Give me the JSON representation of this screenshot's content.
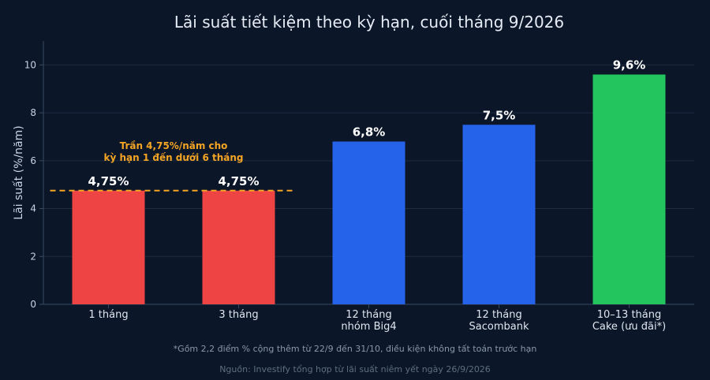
{
  "chart_data": {
    "type": "bar",
    "title": "Lãi suất tiết kiệm theo kỳ hạn, cuối tháng 9/2026",
    "ylabel": "Lãi suất (%/năm)",
    "xlabel": "",
    "ylim": [
      0,
      11
    ],
    "yticks": [
      0,
      2,
      4,
      6,
      8,
      10
    ],
    "grid": true,
    "categories": [
      [
        "1 tháng"
      ],
      [
        "3 tháng"
      ],
      [
        "12 tháng",
        "nhóm Big4"
      ],
      [
        "12 tháng",
        "Sacombank"
      ],
      [
        "10–13 tháng",
        "Cake (ưu đãi*)"
      ]
    ],
    "values": [
      4.75,
      4.75,
      6.8,
      7.5,
      9.6
    ],
    "value_labels": [
      "4,75%",
      "4,75%",
      "6,8%",
      "7,5%",
      "9,6%"
    ],
    "bar_colors": [
      "#ef4444",
      "#ef4444",
      "#2563eb",
      "#2563eb",
      "#22c55e"
    ],
    "reference_line": {
      "value": 4.75,
      "color": "#f5a524",
      "style": "dashed",
      "label_lines": [
        "Trần 4,75%/năm cho",
        "kỳ hạn 1 đến dưới 6 tháng"
      ]
    }
  },
  "footnote": "*Gồm 2,2 điểm % cộng thêm từ 22/9 đến 31/10, điều kiện không tất toán trước hạn",
  "source": "Nguồn: Investify tổng hợp từ lãi suất niêm yết ngày 26/9/2026",
  "colors": {
    "background": "#0b1628",
    "text": "#e6ecf5",
    "muted_text": "#8a97ab",
    "grid": "#1e2b40",
    "axis": "#3a4a63",
    "annotation": "#f5a524"
  }
}
